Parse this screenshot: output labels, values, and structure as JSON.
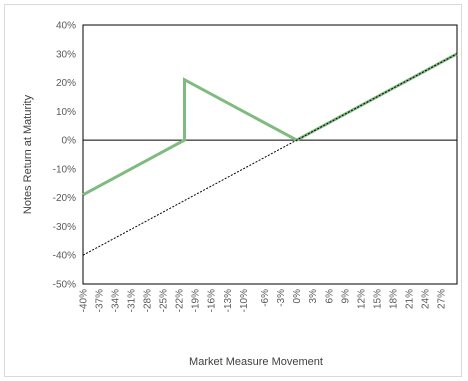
{
  "chart_data": {
    "type": "line",
    "title": "",
    "xlabel": "Market Measure Movement",
    "ylabel": "Notes Return at Maturity",
    "xlim": [
      -40,
      30
    ],
    "ylim": [
      -50,
      40
    ],
    "y_ticks": [
      "-50%",
      "-40%",
      "-30%",
      "-20%",
      "-10%",
      "0%",
      "10%",
      "20%",
      "30%",
      "40%"
    ],
    "y_tick_values": [
      -50,
      -40,
      -30,
      -20,
      -10,
      0,
      10,
      20,
      30,
      40
    ],
    "x_ticks": [
      "-40%",
      "-37%",
      "-34%",
      "-31%",
      "-28%",
      "-25%",
      "-22%",
      "-19%",
      "-16%",
      "-13%",
      "-10%",
      "-6%",
      "-3%",
      "0%",
      "3%",
      "6%",
      "9%",
      "12%",
      "15%",
      "18%",
      "21%",
      "24%",
      "27%"
    ],
    "x_tick_values": [
      -40,
      -37,
      -34,
      -31,
      -28,
      -25,
      -22,
      -19,
      -16,
      -13,
      -10,
      -6,
      -3,
      0,
      3,
      6,
      9,
      12,
      15,
      18,
      21,
      24,
      27
    ],
    "grid": false,
    "zero_line": true,
    "series": [
      {
        "color": "#7fba7f",
        "style": "solid",
        "points": [
          [
            -40,
            -19
          ],
          [
            -21,
            0
          ],
          [
            -21,
            21
          ],
          [
            0,
            0
          ],
          [
            30,
            30
          ]
        ]
      },
      {
        "color": "#000000",
        "style": "dotted",
        "points": [
          [
            -40,
            -40
          ],
          [
            30,
            30
          ]
        ]
      }
    ]
  }
}
